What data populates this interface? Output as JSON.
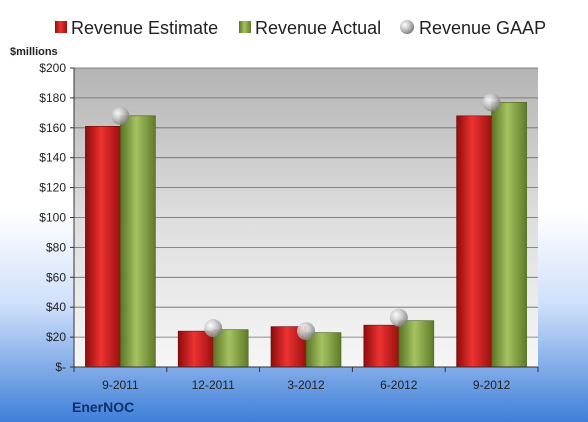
{
  "chart_data": {
    "type": "bar",
    "unit_label": "$millions",
    "company": "EnerNOC",
    "categories": [
      "9-2011",
      "12-2011",
      "3-2012",
      "6-2012",
      "9-2012"
    ],
    "series": [
      {
        "name": "Revenue Estimate",
        "type": "bar",
        "color": "#d81e1e",
        "values": [
          161,
          24,
          27,
          28,
          168
        ]
      },
      {
        "name": "Revenue Actual",
        "type": "bar",
        "color": "#8caa48",
        "values": [
          168,
          25,
          23,
          31,
          177
        ]
      },
      {
        "name": "Revenue GAAP",
        "type": "marker",
        "color": "#b8b8b8",
        "values": [
          168,
          26,
          24,
          33,
          177
        ]
      }
    ],
    "ylim": [
      0,
      200
    ],
    "yticks": [
      {
        "value": 0,
        "label": "$-"
      },
      {
        "value": 20,
        "label": "$20"
      },
      {
        "value": 40,
        "label": "$40"
      },
      {
        "value": 60,
        "label": "$60"
      },
      {
        "value": 80,
        "label": "$80"
      },
      {
        "value": 100,
        "label": "$100"
      },
      {
        "value": 120,
        "label": "$120"
      },
      {
        "value": 140,
        "label": "$140"
      },
      {
        "value": 160,
        "label": "$160"
      },
      {
        "value": 180,
        "label": "$180"
      },
      {
        "value": 200,
        "label": "$200"
      }
    ],
    "grid": true,
    "legend": "top"
  }
}
